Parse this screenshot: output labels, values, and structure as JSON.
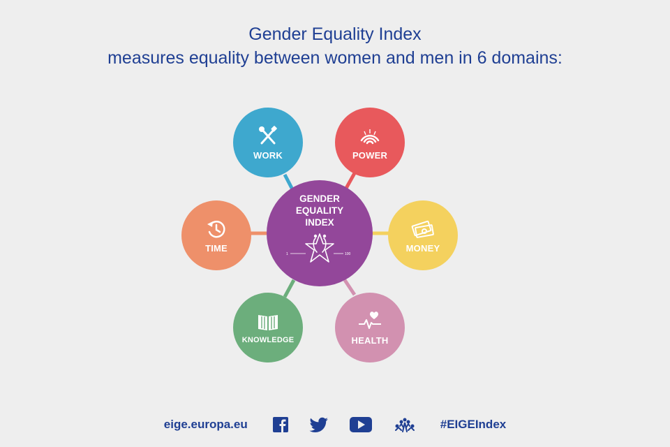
{
  "header": {
    "title": "Gender Equality Index",
    "subtitle": "measures equality between women and men in 6 domains:"
  },
  "center": {
    "line1": "GENDER",
    "line2": "EQUALITY",
    "line3": "INDEX",
    "scale_min": "1",
    "scale_max": "100",
    "color": "#93479a"
  },
  "domains": [
    {
      "label": "WORK",
      "icon": "tools-icon",
      "color": "#3ea8ce"
    },
    {
      "label": "POWER",
      "icon": "signal-icon",
      "color": "#e8595c"
    },
    {
      "label": "MONEY",
      "icon": "money-icon",
      "color": "#f4d15e"
    },
    {
      "label": "HEALTH",
      "icon": "heartbeat-icon",
      "color": "#d291b0"
    },
    {
      "label": "KNOWLEDGE",
      "icon": "book-icon",
      "color": "#6cae7c"
    },
    {
      "label": "TIME",
      "icon": "clock-icon",
      "color": "#ee906a"
    }
  ],
  "footer": {
    "url": "eige.europa.eu",
    "hashtag": "#EIGEIndex",
    "icons": [
      "facebook-icon",
      "twitter-icon",
      "youtube-icon",
      "eige-logo-icon"
    ]
  }
}
